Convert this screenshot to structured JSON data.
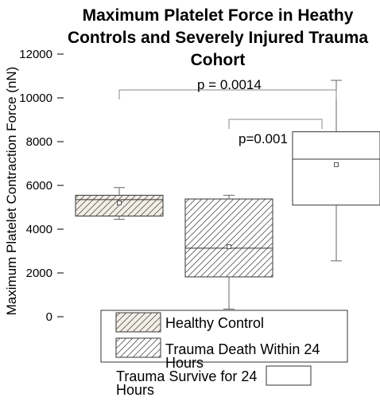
{
  "chart_data": {
    "type": "box",
    "title": "Maximum Platelet Force in Heathy Controls and Severely Injured Trauma Cohort",
    "y_label": "Maximum Platelet Contraction Force (nN)",
    "ylim": [
      0,
      12000
    ],
    "yticks": [
      0,
      2000,
      4000,
      6000,
      8000,
      10000,
      12000
    ],
    "series": [
      {
        "name": "Healthy Control",
        "color": "#f3efe6",
        "whisker_low": 4450,
        "q1": 4600,
        "median": 5350,
        "q3": 5550,
        "whisker_high": 5900,
        "mean": 5200
      },
      {
        "name": "Trauma Death Within 24 Hours",
        "color": "#ffffff",
        "whisker_low": 350,
        "q1": 1820,
        "median": 3130,
        "q3": 5380,
        "whisker_high": 5550,
        "mean": 3200
      },
      {
        "name": "Trauma Survive for 24 Hours",
        "color": "#ffffff",
        "whisker_low": 2550,
        "q1": 5100,
        "median": 7200,
        "q3": 8450,
        "whisker_high": 10800,
        "mean": 6950
      }
    ],
    "annotations": [
      "p = 0.0014",
      "p=0.001"
    ]
  }
}
